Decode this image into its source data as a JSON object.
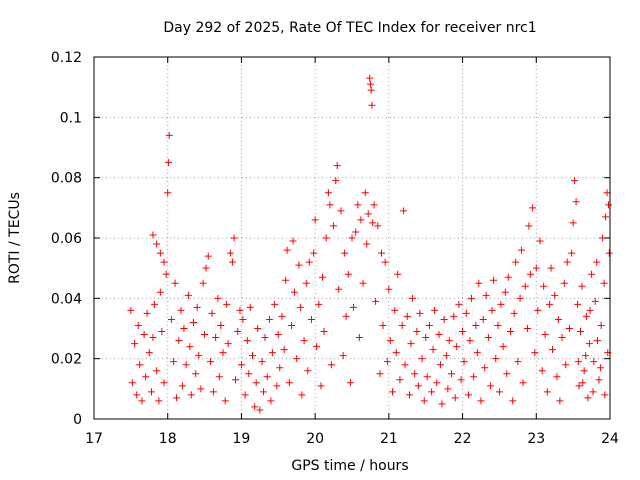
{
  "chart_data": {
    "type": "scatter",
    "title": "Day 292 of 2025, Rate Of TEC Index for receiver nrc1",
    "xlabel": "GPS time / hours",
    "ylabel": "ROTI / TECUs",
    "xlim": [
      17,
      24
    ],
    "ylim": [
      0,
      0.12
    ],
    "x_ticks": [
      17,
      18,
      19,
      20,
      21,
      22,
      23,
      24
    ],
    "x_tick_labels": [
      "17",
      "18",
      "19",
      "20",
      "21",
      "22",
      "23",
      "24"
    ],
    "y_ticks": [
      0,
      0.02,
      0.04,
      0.06,
      0.08,
      0.1,
      0.12
    ],
    "y_tick_labels": [
      "0",
      "0.02",
      "0.04",
      "0.06",
      "0.08",
      "0.1",
      "0.12"
    ],
    "grid": true,
    "legend": "none",
    "marker": "+",
    "color": "#ff0000",
    "series": [
      {
        "points": [
          [
            17.5,
            0.036
          ],
          [
            17.52,
            0.012
          ],
          [
            17.55,
            0.025
          ],
          [
            17.58,
            0.008
          ],
          [
            17.6,
            0.031
          ],
          [
            17.62,
            0.018
          ],
          [
            17.65,
            0.006
          ],
          [
            17.68,
            0.028
          ],
          [
            17.7,
            0.014
          ],
          [
            17.72,
            0.035
          ],
          [
            17.75,
            0.022
          ],
          [
            17.78,
            0.009
          ],
          [
            17.8,
            0.027
          ],
          [
            17.82,
            0.038
          ],
          [
            17.85,
            0.016
          ],
          [
            17.88,
            0.006
          ],
          [
            17.9,
            0.042
          ],
          [
            17.92,
            0.029
          ],
          [
            17.95,
            0.012
          ],
          [
            17.98,
            0.048
          ],
          [
            18.0,
            0.075
          ],
          [
            18.01,
            0.085
          ],
          [
            18.02,
            0.094
          ],
          [
            17.8,
            0.061
          ],
          [
            17.85,
            0.058
          ],
          [
            17.9,
            0.055
          ],
          [
            17.95,
            0.052
          ],
          [
            18.05,
            0.033
          ],
          [
            18.08,
            0.019
          ],
          [
            18.1,
            0.045
          ],
          [
            18.12,
            0.007
          ],
          [
            18.15,
            0.026
          ],
          [
            18.18,
            0.036
          ],
          [
            18.2,
            0.011
          ],
          [
            18.22,
            0.03
          ],
          [
            18.25,
            0.018
          ],
          [
            18.28,
            0.041
          ],
          [
            18.3,
            0.024
          ],
          [
            18.32,
            0.008
          ],
          [
            18.35,
            0.032
          ],
          [
            18.38,
            0.015
          ],
          [
            18.4,
            0.037
          ],
          [
            18.42,
            0.021
          ],
          [
            18.45,
            0.01
          ],
          [
            18.48,
            0.045
          ],
          [
            18.5,
            0.028
          ],
          [
            18.52,
            0.05
          ],
          [
            18.55,
            0.054
          ],
          [
            18.58,
            0.019
          ],
          [
            18.6,
            0.035
          ],
          [
            18.62,
            0.009
          ],
          [
            18.65,
            0.027
          ],
          [
            18.68,
            0.04
          ],
          [
            18.7,
            0.014
          ],
          [
            18.72,
            0.031
          ],
          [
            18.75,
            0.022
          ],
          [
            18.78,
            0.006
          ],
          [
            18.8,
            0.038
          ],
          [
            18.82,
            0.025
          ],
          [
            18.85,
            0.055
          ],
          [
            18.88,
            0.052
          ],
          [
            18.9,
            0.06
          ],
          [
            18.92,
            0.013
          ],
          [
            18.95,
            0.029
          ],
          [
            18.98,
            0.036
          ],
          [
            19.0,
            0.018
          ],
          [
            19.02,
            0.033
          ],
          [
            19.05,
            0.008
          ],
          [
            19.08,
            0.026
          ],
          [
            19.1,
            0.015
          ],
          [
            19.12,
            0.037
          ],
          [
            19.15,
            0.021
          ],
          [
            19.18,
            0.004
          ],
          [
            19.2,
            0.012
          ],
          [
            19.22,
            0.03
          ],
          [
            19.25,
            0.003
          ],
          [
            19.28,
            0.019
          ],
          [
            19.3,
            0.009
          ],
          [
            19.32,
            0.027
          ],
          [
            19.35,
            0.014
          ],
          [
            19.38,
            0.033
          ],
          [
            19.4,
            0.006
          ],
          [
            19.42,
            0.022
          ],
          [
            19.45,
            0.038
          ],
          [
            19.48,
            0.011
          ],
          [
            19.5,
            0.028
          ],
          [
            19.52,
            0.017
          ],
          [
            19.55,
            0.034
          ],
          [
            19.58,
            0.023
          ],
          [
            19.6,
            0.046
          ],
          [
            19.62,
            0.056
          ],
          [
            19.65,
            0.012
          ],
          [
            19.68,
            0.031
          ],
          [
            19.7,
            0.059
          ],
          [
            19.72,
            0.042
          ],
          [
            19.75,
            0.02
          ],
          [
            19.78,
            0.051
          ],
          [
            19.8,
            0.037
          ],
          [
            19.82,
            0.008
          ],
          [
            19.85,
            0.026
          ],
          [
            19.88,
            0.045
          ],
          [
            19.9,
            0.016
          ],
          [
            19.92,
            0.052
          ],
          [
            19.95,
            0.033
          ],
          [
            19.98,
            0.055
          ],
          [
            20.0,
            0.066
          ],
          [
            20.02,
            0.024
          ],
          [
            20.05,
            0.038
          ],
          [
            20.08,
            0.011
          ],
          [
            20.1,
            0.047
          ],
          [
            20.12,
            0.029
          ],
          [
            20.15,
            0.06
          ],
          [
            20.18,
            0.075
          ],
          [
            20.2,
            0.071
          ],
          [
            20.22,
            0.018
          ],
          [
            20.25,
            0.064
          ],
          [
            20.28,
            0.079
          ],
          [
            20.3,
            0.084
          ],
          [
            20.32,
            0.043
          ],
          [
            20.35,
            0.069
          ],
          [
            20.38,
            0.021
          ],
          [
            20.4,
            0.055
          ],
          [
            20.42,
            0.034
          ],
          [
            20.45,
            0.048
          ],
          [
            20.48,
            0.012
          ],
          [
            20.5,
            0.06
          ],
          [
            20.52,
            0.037
          ],
          [
            20.55,
            0.062
          ],
          [
            20.58,
            0.071
          ],
          [
            20.6,
            0.027
          ],
          [
            20.62,
            0.066
          ],
          [
            20.65,
            0.045
          ],
          [
            20.68,
            0.075
          ],
          [
            20.7,
            0.058
          ],
          [
            20.72,
            0.068
          ],
          [
            20.74,
            0.113
          ],
          [
            20.75,
            0.111
          ],
          [
            20.76,
            0.109
          ],
          [
            20.77,
            0.104
          ],
          [
            20.78,
            0.065
          ],
          [
            20.8,
            0.071
          ],
          [
            20.82,
            0.039
          ],
          [
            20.85,
            0.064
          ],
          [
            20.88,
            0.015
          ],
          [
            20.9,
            0.055
          ],
          [
            20.92,
            0.031
          ],
          [
            20.95,
            0.052
          ],
          [
            20.98,
            0.019
          ],
          [
            21.0,
            0.043
          ],
          [
            21.02,
            0.026
          ],
          [
            21.05,
            0.009
          ],
          [
            21.08,
            0.036
          ],
          [
            21.1,
            0.022
          ],
          [
            21.12,
            0.048
          ],
          [
            21.15,
            0.013
          ],
          [
            21.18,
            0.031
          ],
          [
            21.2,
            0.069
          ],
          [
            21.22,
            0.018
          ],
          [
            21.25,
            0.034
          ],
          [
            21.28,
            0.008
          ],
          [
            21.3,
            0.025
          ],
          [
            21.32,
            0.04
          ],
          [
            21.35,
            0.015
          ],
          [
            21.38,
            0.029
          ],
          [
            21.4,
            0.011
          ],
          [
            21.42,
            0.035
          ],
          [
            21.45,
            0.02
          ],
          [
            21.48,
            0.006
          ],
          [
            21.5,
            0.027
          ],
          [
            21.52,
            0.014
          ],
          [
            21.55,
            0.031
          ],
          [
            21.58,
            0.009
          ],
          [
            21.6,
            0.023
          ],
          [
            21.62,
            0.036
          ],
          [
            21.65,
            0.012
          ],
          [
            21.68,
            0.028
          ],
          [
            21.7,
            0.018
          ],
          [
            21.72,
            0.005
          ],
          [
            21.75,
            0.033
          ],
          [
            21.78,
            0.021
          ],
          [
            21.8,
            0.01
          ],
          [
            21.82,
            0.026
          ],
          [
            21.85,
            0.015
          ],
          [
            21.88,
            0.034
          ],
          [
            21.9,
            0.007
          ],
          [
            21.92,
            0.024
          ],
          [
            21.95,
            0.038
          ],
          [
            21.98,
            0.013
          ],
          [
            22.0,
            0.029
          ],
          [
            22.02,
            0.019
          ],
          [
            22.05,
            0.035
          ],
          [
            22.08,
            0.008
          ],
          [
            22.1,
            0.026
          ],
          [
            22.12,
            0.04
          ],
          [
            22.15,
            0.014
          ],
          [
            22.18,
            0.031
          ],
          [
            22.2,
            0.022
          ],
          [
            22.22,
            0.045
          ],
          [
            22.25,
            0.006
          ],
          [
            22.28,
            0.033
          ],
          [
            22.3,
            0.017
          ],
          [
            22.32,
            0.041
          ],
          [
            22.35,
            0.027
          ],
          [
            22.38,
            0.011
          ],
          [
            22.4,
            0.036
          ],
          [
            22.42,
            0.046
          ],
          [
            22.45,
            0.02
          ],
          [
            22.48,
            0.031
          ],
          [
            22.5,
            0.009
          ],
          [
            22.52,
            0.038
          ],
          [
            22.55,
            0.024
          ],
          [
            22.58,
            0.042
          ],
          [
            22.6,
            0.015
          ],
          [
            22.62,
            0.047
          ],
          [
            22.65,
            0.029
          ],
          [
            22.68,
            0.006
          ],
          [
            22.7,
            0.035
          ],
          [
            22.72,
            0.052
          ],
          [
            22.75,
            0.019
          ],
          [
            22.78,
            0.04
          ],
          [
            22.8,
            0.056
          ],
          [
            22.82,
            0.012
          ],
          [
            22.85,
            0.044
          ],
          [
            22.88,
            0.03
          ],
          [
            22.9,
            0.064
          ],
          [
            22.92,
            0.048
          ],
          [
            22.95,
            0.07
          ],
          [
            22.98,
            0.022
          ],
          [
            23.0,
            0.05
          ],
          [
            23.02,
            0.036
          ],
          [
            23.05,
            0.059
          ],
          [
            23.08,
            0.016
          ],
          [
            23.1,
            0.044
          ],
          [
            23.12,
            0.028
          ],
          [
            23.15,
            0.009
          ],
          [
            23.18,
            0.038
          ],
          [
            23.2,
            0.05
          ],
          [
            23.22,
            0.023
          ],
          [
            23.25,
            0.041
          ],
          [
            23.28,
            0.014
          ],
          [
            23.3,
            0.033
          ],
          [
            23.32,
            0.006
          ],
          [
            23.35,
            0.027
          ],
          [
            23.38,
            0.045
          ],
          [
            23.4,
            0.018
          ],
          [
            23.42,
            0.052
          ],
          [
            23.45,
            0.03
          ],
          [
            23.48,
            0.055
          ],
          [
            23.5,
            0.065
          ],
          [
            23.52,
            0.079
          ],
          [
            23.54,
            0.072
          ],
          [
            23.56,
            0.038
          ],
          [
            23.58,
            0.011
          ],
          [
            23.6,
            0.029
          ],
          [
            23.62,
            0.044
          ],
          [
            23.65,
            0.016
          ],
          [
            23.68,
            0.034
          ],
          [
            23.7,
            0.007
          ],
          [
            23.72,
            0.025
          ],
          [
            23.75,
            0.048
          ],
          [
            23.78,
            0.019
          ],
          [
            23.8,
            0.039
          ],
          [
            23.82,
            0.052
          ],
          [
            23.85,
            0.013
          ],
          [
            23.88,
            0.031
          ],
          [
            23.9,
            0.06
          ],
          [
            23.92,
            0.045
          ],
          [
            23.94,
            0.067
          ],
          [
            23.96,
            0.075
          ],
          [
            23.98,
            0.071
          ],
          [
            23.99,
            0.055
          ],
          [
            23.97,
            0.022
          ],
          [
            23.93,
            0.008
          ],
          [
            23.87,
            0.017
          ],
          [
            23.83,
            0.026
          ],
          [
            23.77,
            0.009
          ],
          [
            23.73,
            0.036
          ],
          [
            23.67,
            0.021
          ],
          [
            23.63,
            0.012
          ],
          [
            23.57,
            0.019
          ]
        ]
      }
    ]
  }
}
